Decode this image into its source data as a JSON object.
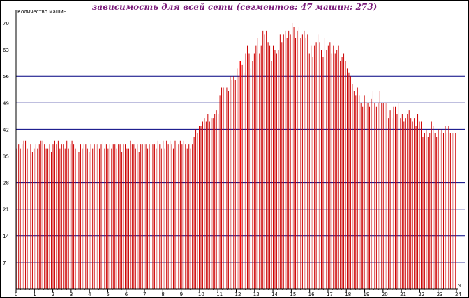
{
  "chart_data": {
    "type": "bar",
    "title": "зависимость для всей сети (сегментов: 47 машин: 273)",
    "ylabel": "Количество машин",
    "xlabel_corner": "ч",
    "ylim": [
      0,
      70
    ],
    "y_ticks": [
      0,
      7,
      14,
      21,
      28,
      35,
      42,
      49,
      56,
      63,
      70
    ],
    "x_range": [
      0,
      24
    ],
    "x_ticks": [
      "0",
      "1",
      "2",
      "3",
      "4",
      "5",
      "6",
      "7",
      "8",
      "9",
      "10",
      "11",
      "12",
      "13",
      "14",
      "15",
      "16",
      "17",
      "18",
      "19",
      "20",
      "21",
      "22",
      "23",
      "24"
    ],
    "grid_y": [
      7,
      14,
      21,
      28,
      35,
      42,
      49,
      56
    ],
    "bar_color": "#cc0000",
    "highlight_color": "#ff0000",
    "grid_color": "#000080",
    "values": [
      37,
      38,
      37,
      38,
      39,
      39,
      37,
      39,
      38,
      36,
      37,
      38,
      37,
      38,
      39,
      39,
      38,
      37,
      37,
      38,
      36,
      38,
      39,
      38,
      39,
      37,
      38,
      38,
      37,
      39,
      37,
      38,
      39,
      38,
      37,
      38,
      36,
      38,
      37,
      38,
      38,
      37,
      36,
      38,
      37,
      38,
      38,
      38,
      37,
      38,
      39,
      37,
      38,
      37,
      38,
      37,
      38,
      38,
      37,
      38,
      38,
      36,
      38,
      38,
      37,
      37,
      39,
      38,
      38,
      37,
      38,
      36,
      38,
      38,
      38,
      38,
      37,
      38,
      39,
      38,
      38,
      37,
      39,
      38,
      37,
      39,
      37,
      39,
      38,
      39,
      38,
      37,
      39,
      38,
      38,
      39,
      38,
      39,
      38,
      37,
      38,
      37,
      38,
      40,
      42,
      41,
      43,
      43,
      44,
      45,
      44,
      46,
      44,
      45,
      45,
      46,
      47,
      46,
      51,
      53,
      53,
      53,
      53,
      52,
      56,
      55,
      56,
      55,
      58,
      56,
      60,
      59,
      57,
      62,
      64,
      62,
      58,
      60,
      62,
      64,
      66,
      62,
      64,
      68,
      67,
      68,
      65,
      64,
      60,
      64,
      63,
      62,
      63,
      67,
      65,
      67,
      68,
      66,
      68,
      67,
      70,
      69,
      66,
      68,
      69,
      66,
      67,
      68,
      66,
      67,
      62,
      64,
      61,
      64,
      65,
      67,
      65,
      63,
      61,
      66,
      63,
      64,
      65,
      62,
      64,
      62,
      63,
      64,
      60,
      61,
      62,
      60,
      58,
      57,
      56,
      54,
      52,
      51,
      53,
      51,
      49,
      48,
      51,
      49,
      49,
      48,
      50,
      52,
      49,
      48,
      49,
      52,
      49,
      49,
      49,
      49,
      45,
      47,
      45,
      48,
      48,
      46,
      49,
      45,
      46,
      44,
      45,
      46,
      47,
      45,
      44,
      45,
      43,
      46,
      44,
      44,
      40,
      41,
      42,
      40,
      41,
      44,
      43,
      41,
      40,
      42,
      41,
      42,
      41,
      43,
      41,
      43,
      41,
      41,
      41,
      41
    ],
    "highlight_index": 130
  }
}
